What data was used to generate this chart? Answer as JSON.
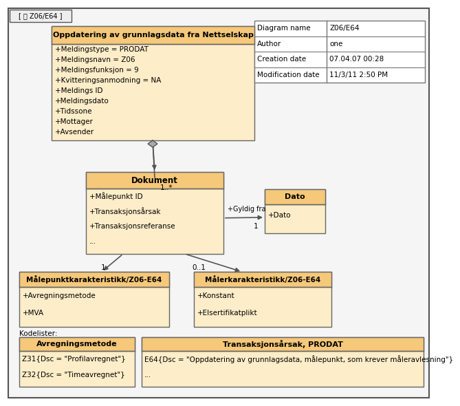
{
  "bg_color": "#ffffff",
  "fill_light": "#fdedc8",
  "fill_header": "#f5c87a",
  "border_col": "#666666",
  "text_col": "#000000",
  "tab_text": "[ 圖 Z06/E64 ]",
  "info_rows": [
    [
      "Diagram name",
      "Z06/E64"
    ],
    [
      "Author",
      "one"
    ],
    [
      "Creation date",
      "07.04.07 00:28"
    ],
    [
      "Modification date",
      "11/3/11 2:50 PM"
    ]
  ],
  "ns_title": "Oppdatering av grunnlagsdata fra Nettselskap",
  "ns_attrs": [
    "+Meldingstype = PRODAT",
    "+Meldingsnavn = Z06",
    "+Meldingsfunksjon = 9",
    "+Kvitteringsanmodning = NA",
    "+Meldings ID",
    "+Meldingsdato",
    "+Tidssone",
    "+Mottager",
    "+Avsender"
  ],
  "dok_title": "Dokument",
  "dok_attrs": [
    "+Målepunkt ID",
    "+Transaksjonsårsak",
    "+Transaksjonsreferanse",
    "..."
  ],
  "dato_title": "Dato",
  "dato_attrs": [
    "+Dato"
  ],
  "mp_title": "Målepunktkarakteristikk/Z06-E64",
  "mp_attrs": [
    "+Avregningsmetode",
    "+MVA"
  ],
  "ml_title": "Målerkarakteristikk/Z06-E64",
  "ml_attrs": [
    "+Konstant",
    "+Elsertifikatplikt"
  ],
  "avr_title": "Avregningsmetode",
  "avr_lines": [
    "Z31{Dsc = \"Profilavregnet\"}",
    "Z32{Dsc = \"Timeavregnet\"}"
  ],
  "tr_title": "Transaksjonsårsak, PRODAT",
  "tr_lines": [
    "E64{Dsc = \"Oppdatering av grunnlagsdata, målepunkt, som krever måleravlesning\"}",
    "..."
  ]
}
